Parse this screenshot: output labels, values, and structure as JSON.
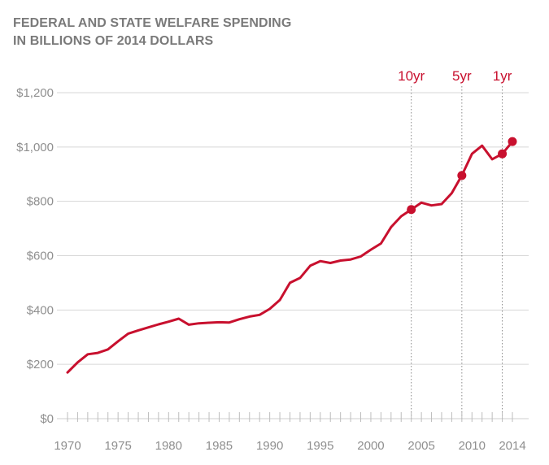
{
  "chart_data": {
    "type": "line",
    "title": "FEDERAL AND STATE WELFARE SPENDING",
    "subtitle": "IN BILLIONS OF 2014 DOLLARS",
    "xlabel": "",
    "ylabel": "",
    "xlim": [
      1970,
      2014
    ],
    "ylim": [
      0,
      1200
    ],
    "y_ticks": [
      0,
      200,
      400,
      600,
      800,
      1000,
      1200
    ],
    "y_tick_labels": [
      "$0",
      "$200",
      "$400",
      "$600",
      "$800",
      "$1,000",
      "$1,200"
    ],
    "x_ticks": [
      1970,
      1975,
      1980,
      1985,
      1990,
      1995,
      2000,
      2005,
      2010,
      2014
    ],
    "x_tick_labels": [
      "1970",
      "1975",
      "1980",
      "1985",
      "1990",
      "1995",
      "2000",
      "2005",
      "2010",
      "2014"
    ],
    "grid": true,
    "color": "#c8102e",
    "series": [
      {
        "name": "Welfare spending",
        "x": [
          1970,
          1971,
          1972,
          1973,
          1974,
          1975,
          1976,
          1977,
          1978,
          1979,
          1980,
          1981,
          1982,
          1983,
          1984,
          1985,
          1986,
          1987,
          1988,
          1989,
          1990,
          1991,
          1992,
          1993,
          1994,
          1995,
          1996,
          1997,
          1998,
          1999,
          2000,
          2001,
          2002,
          2003,
          2004,
          2005,
          2006,
          2007,
          2008,
          2009,
          2010,
          2011,
          2012,
          2013,
          2014
        ],
        "values": [
          170,
          207,
          237,
          242,
          255,
          285,
          313,
          325,
          336,
          347,
          357,
          368,
          346,
          351,
          353,
          355,
          354,
          366,
          376,
          382,
          404,
          437,
          500,
          518,
          563,
          580,
          573,
          582,
          586,
          597,
          622,
          645,
          705,
          745,
          770,
          795,
          785,
          790,
          830,
          895,
          975,
          1005,
          955,
          975,
          1020
        ]
      }
    ],
    "annotations": [
      {
        "label": "10yr",
        "x": 2004,
        "value": 770
      },
      {
        "label": "5yr",
        "x": 2009,
        "value": 895
      },
      {
        "label": "1yr",
        "x": 2013,
        "value": 975
      }
    ],
    "highlight_points": [
      {
        "x": 2004,
        "value": 770
      },
      {
        "x": 2009,
        "value": 895
      },
      {
        "x": 2013,
        "value": 975
      },
      {
        "x": 2014,
        "value": 1020
      }
    ]
  }
}
